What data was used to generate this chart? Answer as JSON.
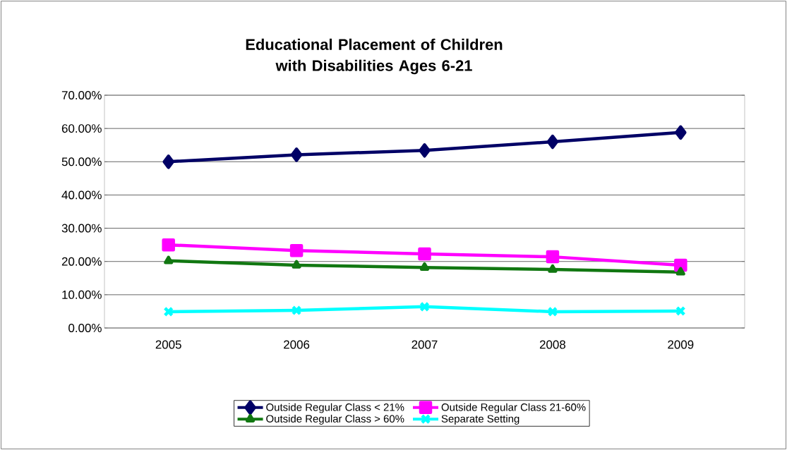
{
  "chart_data": {
    "type": "line",
    "title": "Educational Placement of Children with Disabilities Ages 6-21",
    "categories": [
      "2005",
      "2006",
      "2007",
      "2008",
      "2009"
    ],
    "series": [
      {
        "name": "Outside Regular Class < 21%",
        "color": "#000066",
        "marker": "diamond",
        "values": [
          50.0,
          52.1,
          53.4,
          56.0,
          58.8
        ]
      },
      {
        "name": "Outside Regular Class 21-60%",
        "color": "#ff00ff",
        "marker": "square",
        "values": [
          25.0,
          23.3,
          22.3,
          21.4,
          18.9
        ]
      },
      {
        "name": "Outside Regular Class > 60%",
        "color": "#117711",
        "marker": "triangle",
        "values": [
          20.2,
          18.9,
          18.2,
          17.6,
          16.8
        ]
      },
      {
        "name": "Separate Setting",
        "color": "#00ffff",
        "marker": "cross",
        "values": [
          4.9,
          5.3,
          6.4,
          4.9,
          5.1
        ]
      }
    ],
    "ylim": [
      0,
      70
    ],
    "yticks": [
      {
        "value": 0,
        "label": "0.00%"
      },
      {
        "value": 10,
        "label": "10.00%"
      },
      {
        "value": 20,
        "label": "20.00%"
      },
      {
        "value": 30,
        "label": "30.00%"
      },
      {
        "value": 40,
        "label": "40.00%"
      },
      {
        "value": 50,
        "label": "50.00%"
      },
      {
        "value": 60,
        "label": "60.00%"
      },
      {
        "value": 70,
        "label": "70.00%"
      }
    ],
    "grid": "y",
    "legend": "bottom"
  }
}
